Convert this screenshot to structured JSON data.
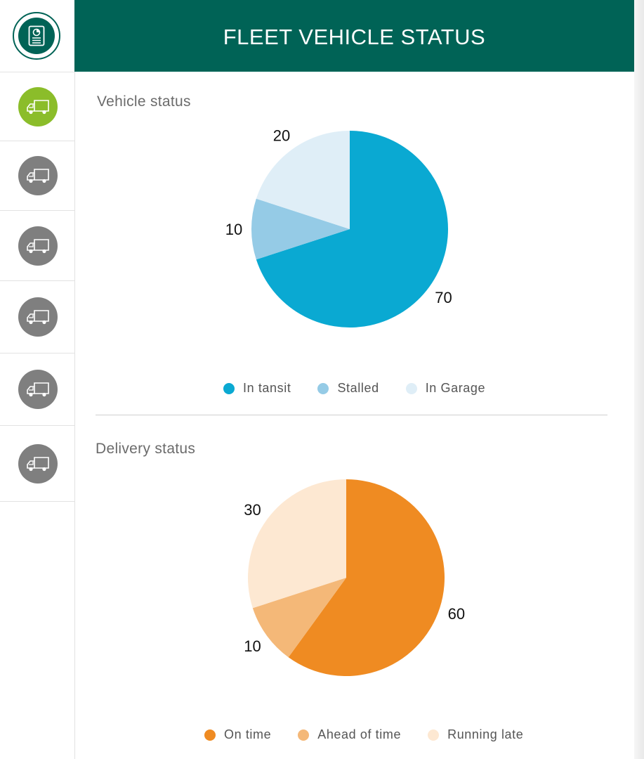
{
  "header": {
    "title": "FLEET VEHICLE STATUS"
  },
  "sidebar": {
    "logo_icon": "report-chart-icon",
    "vehicles": [
      {
        "icon": "truck-icon",
        "active": true
      },
      {
        "icon": "truck-icon",
        "active": false
      },
      {
        "icon": "truck-icon",
        "active": false
      },
      {
        "icon": "truck-icon",
        "active": false
      },
      {
        "icon": "truck-icon",
        "active": false
      },
      {
        "icon": "truck-icon",
        "active": false
      }
    ],
    "colors": {
      "active": "#8bbd2a",
      "inactive": "#7f7f7f",
      "brand": "#006356"
    }
  },
  "chart_data": [
    {
      "type": "pie",
      "title": "Vehicle status",
      "categories": [
        "In tansit",
        "Stalled",
        "In Garage"
      ],
      "values": [
        70,
        10,
        20
      ],
      "colors": [
        "#0aa9d2",
        "#95cbe6",
        "#dfeef7"
      ],
      "legend": "bottom"
    },
    {
      "type": "pie",
      "title": "Delivery status",
      "categories": [
        "On time",
        "Ahead of time",
        "Running late"
      ],
      "values": [
        60,
        10,
        30
      ],
      "colors": [
        "#ef8b22",
        "#f4b878",
        "#fde8d2"
      ],
      "legend": "bottom"
    }
  ]
}
